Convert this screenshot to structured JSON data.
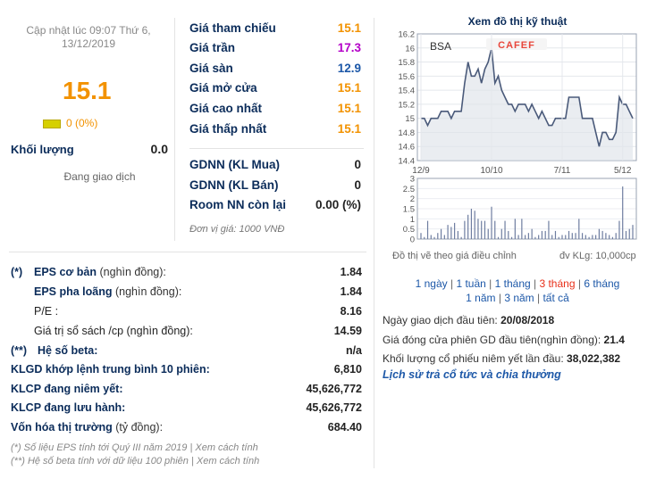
{
  "header": {
    "update_line1": "Cập nhật lúc 09:07 Thứ 6,",
    "update_line2": "13/12/2019",
    "price": "15.1",
    "change": "0 (0%)",
    "volume_label": "Khối lượng",
    "volume_value": "0.0",
    "trading_status": "Đang giao dịch"
  },
  "prices": [
    {
      "label": "Giá tham chiếu",
      "value": "15.1",
      "color": "#f29200"
    },
    {
      "label": "Giá trần",
      "value": "17.3",
      "color": "#b400c8"
    },
    {
      "label": "Giá sàn",
      "value": "12.9",
      "color": "#1d58a8"
    },
    {
      "label": "Giá mở cửa",
      "value": "15.1",
      "color": "#f29200"
    },
    {
      "label": "Giá cao nhất",
      "value": "15.1",
      "color": "#f29200"
    },
    {
      "label": "Giá thấp nhất",
      "value": "15.1",
      "color": "#f29200"
    }
  ],
  "foreign": [
    {
      "label": "GDNN (KL Mua)",
      "value": "0"
    },
    {
      "label": "GDNN (KL Bán)",
      "value": "0"
    },
    {
      "label": "Room NN còn lại",
      "value": "0.00 (%)"
    }
  ],
  "unit_note": "Đơn vị giá: 1000 VNĐ",
  "fundamentals": [
    {
      "mark": "(*)",
      "label": "EPS cơ bản",
      "sub": " (nghìn đồng):",
      "value": "1.84"
    },
    {
      "mark": "",
      "label": "EPS pha loãng",
      "sub": " (nghìn đồng):",
      "value": "1.84"
    },
    {
      "mark": "",
      "label": "P/E",
      "sub": " :",
      "value": "8.16"
    },
    {
      "mark": "",
      "label": "Giá trị sổ sách /cp",
      "sub": " (nghìn đồng):",
      "value": "14.59"
    },
    {
      "mark": "(**)",
      "label": "Hệ số beta:",
      "sub": "",
      "value": "n/a"
    },
    {
      "mark": "",
      "label": "KLGD khớp lệnh trung bình 10 phiên:",
      "sub": "",
      "value": "6,810"
    },
    {
      "mark": "",
      "label": "KLCP đang niêm yết:",
      "sub": "",
      "value": "45,626,772"
    },
    {
      "mark": "",
      "label": "KLCP đang lưu hành:",
      "sub": "",
      "value": "45,626,772"
    },
    {
      "mark": "",
      "label": "Vốn hóa thị trường",
      "sub": " (tỷ đồng):",
      "value": "684.40"
    }
  ],
  "footnotes": {
    "eps": "(*) Số liệu EPS tính tới Quý III năm 2019 | Xem cách tính",
    "beta": "(**) Hệ số beta tính với dữ liệu 100 phiên | Xem cách tính"
  },
  "chart": {
    "title": "Xem đồ thị kỹ thuật",
    "ticker": "BSA",
    "brand": "CAFEF",
    "caption_left": "Đồ thị vẽ theo giá điều chỉnh",
    "caption_right": "đv KLg: 10,000cp"
  },
  "chart_data": {
    "type": "line",
    "x_tick_labels": [
      "12/9",
      "10/10",
      "7/11",
      "5/12"
    ],
    "price_ticks": [
      "16.2",
      "16",
      "15.8",
      "15.6",
      "15.4",
      "15.2",
      "15",
      "14.8",
      "14.6",
      "14.4"
    ],
    "price_ylim": [
      14.4,
      16.2
    ],
    "volume_ticks": [
      "3",
      "2.5",
      "2",
      "1.5",
      "1",
      "0.5",
      "0"
    ],
    "volume_ylim": [
      0,
      3
    ],
    "price_series": [
      15.0,
      15.0,
      14.9,
      15.0,
      15.0,
      15.0,
      15.1,
      15.1,
      15.1,
      15.0,
      15.1,
      15.1,
      15.1,
      15.5,
      15.8,
      15.6,
      15.6,
      15.7,
      15.5,
      15.7,
      15.8,
      16.0,
      15.5,
      15.6,
      15.4,
      15.3,
      15.2,
      15.2,
      15.1,
      15.2,
      15.2,
      15.2,
      15.1,
      15.2,
      15.1,
      15.0,
      15.1,
      15.0,
      14.9,
      14.9,
      15.0,
      15.0,
      15.0,
      15.0,
      15.3,
      15.3,
      15.3,
      15.3,
      15.0,
      15.0,
      15.0,
      15.0,
      14.8,
      14.6,
      14.8,
      14.8,
      14.7,
      14.7,
      14.8,
      15.3,
      15.2,
      15.2,
      15.1,
      15.0
    ],
    "volume_series": [
      0.3,
      0.1,
      0.9,
      0.2,
      0.1,
      0.3,
      0.5,
      0.2,
      0.7,
      0.6,
      0.8,
      0.4,
      0.1,
      0.9,
      1.2,
      1.5,
      1.4,
      1.0,
      0.9,
      0.9,
      0.5,
      1.6,
      0.9,
      0.1,
      0.5,
      0.9,
      0.4,
      0.1,
      1.0,
      0.2,
      1.0,
      0.2,
      0.3,
      0.5,
      0.1,
      0.2,
      0.4,
      0.4,
      0.9,
      0.2,
      0.4,
      0.1,
      0.2,
      0.2,
      0.4,
      0.3,
      0.3,
      1.0,
      0.3,
      0.2,
      0.1,
      0.2,
      0.2,
      0.5,
      0.4,
      0.3,
      0.2,
      0.1,
      0.3,
      0.9,
      2.6,
      0.4,
      0.5,
      0.7
    ]
  },
  "period_links": [
    {
      "label": "1 ngày",
      "selected": false
    },
    {
      "label": "1 tuần",
      "selected": false
    },
    {
      "label": "1 tháng",
      "selected": false
    },
    {
      "label": "3 tháng",
      "selected": true
    },
    {
      "label": "6 tháng",
      "selected": false
    },
    {
      "label": "1 năm",
      "selected": false
    },
    {
      "label": "3 năm",
      "selected": false
    },
    {
      "label": "tất cả",
      "selected": false
    }
  ],
  "info": [
    {
      "label": "Ngày giao dịch đầu tiên: ",
      "value": "20/08/2018"
    },
    {
      "label": "Giá đóng cửa phiên GD đầu tiên(nghìn đồng): ",
      "value": "21.4"
    },
    {
      "label": "Khối lượng cổ phiếu niêm yết lần đầu: ",
      "value": "38,022,382"
    }
  ],
  "history_link": "Lịch sử trả cổ tức và chia thưởng",
  "colors": {
    "navy": "#0b2c5a",
    "orange": "#f29200",
    "purple": "#b400c8",
    "blue": "#1d58a8",
    "chart_line": "#4a5a7a"
  }
}
